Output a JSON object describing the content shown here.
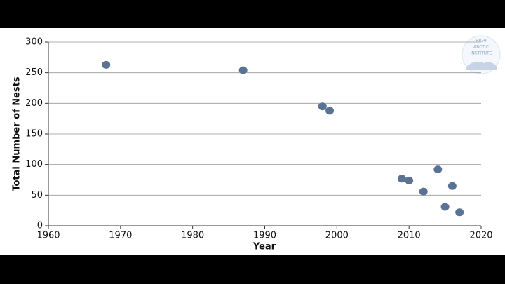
{
  "chart_data": {
    "type": "scatter",
    "x_label": "Year",
    "y_label": "Total Number of Nests",
    "x": [
      1968,
      1987,
      1998,
      1999,
      2009,
      2010,
      2012,
      2014,
      2015,
      2016,
      2017
    ],
    "values": [
      263,
      254,
      195,
      188,
      77,
      74,
      56,
      92,
      31,
      65,
      22
    ],
    "color": "#5b7393",
    "xlim": [
      1960,
      2020
    ],
    "xticks": [
      1960,
      1970,
      1980,
      1990,
      2000,
      2010,
      2020
    ],
    "ylim": [
      0,
      300
    ],
    "yticks": [
      0,
      50,
      100,
      150,
      200,
      250,
      300
    ],
    "grid": true
  },
  "logo": {
    "lines": [
      "HIGH",
      "ARCTIC",
      "INSTITUTE"
    ]
  }
}
